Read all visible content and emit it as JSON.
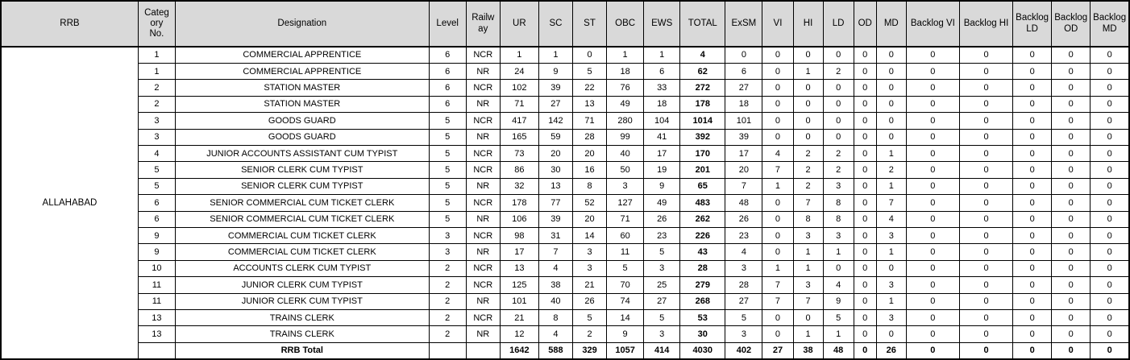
{
  "table": {
    "rrb_label": "ALLAHABAD",
    "columns": [
      "RRB",
      "Categ\nory\nNo.",
      "Designation",
      "Level",
      "Railw\nay",
      "UR",
      "SC",
      "ST",
      "OBC",
      "EWS",
      "TOTAL",
      "ExSM",
      "VI",
      "HI",
      "LD",
      "OD",
      "MD",
      "Backlog VI",
      "Backlog HI",
      "Backlog\nLD",
      "Backlog\nOD",
      "Backlog\nMD"
    ],
    "rows": [
      [
        "1",
        "COMMERCIAL APPRENTICE",
        "6",
        "NCR",
        "1",
        "1",
        "0",
        "1",
        "1",
        "4",
        "0",
        "0",
        "0",
        "0",
        "0",
        "0",
        "0",
        "0",
        "0",
        "0",
        "0"
      ],
      [
        "1",
        "COMMERCIAL APPRENTICE",
        "6",
        "NR",
        "24",
        "9",
        "5",
        "18",
        "6",
        "62",
        "6",
        "0",
        "1",
        "2",
        "0",
        "0",
        "0",
        "0",
        "0",
        "0",
        "0"
      ],
      [
        "2",
        "STATION MASTER",
        "6",
        "NCR",
        "102",
        "39",
        "22",
        "76",
        "33",
        "272",
        "27",
        "0",
        "0",
        "0",
        "0",
        "0",
        "0",
        "0",
        "0",
        "0",
        "0"
      ],
      [
        "2",
        "STATION MASTER",
        "6",
        "NR",
        "71",
        "27",
        "13",
        "49",
        "18",
        "178",
        "18",
        "0",
        "0",
        "0",
        "0",
        "0",
        "0",
        "0",
        "0",
        "0",
        "0"
      ],
      [
        "3",
        "GOODS GUARD",
        "5",
        "NCR",
        "417",
        "142",
        "71",
        "280",
        "104",
        "1014",
        "101",
        "0",
        "0",
        "0",
        "0",
        "0",
        "0",
        "0",
        "0",
        "0",
        "0"
      ],
      [
        "3",
        "GOODS GUARD",
        "5",
        "NR",
        "165",
        "59",
        "28",
        "99",
        "41",
        "392",
        "39",
        "0",
        "0",
        "0",
        "0",
        "0",
        "0",
        "0",
        "0",
        "0",
        "0"
      ],
      [
        "4",
        "JUNIOR ACCOUNTS ASSISTANT CUM TYPIST",
        "5",
        "NCR",
        "73",
        "20",
        "20",
        "40",
        "17",
        "170",
        "17",
        "4",
        "2",
        "2",
        "0",
        "1",
        "0",
        "0",
        "0",
        "0",
        "0"
      ],
      [
        "5",
        "SENIOR CLERK CUM TYPIST",
        "5",
        "NCR",
        "86",
        "30",
        "16",
        "50",
        "19",
        "201",
        "20",
        "7",
        "2",
        "2",
        "0",
        "2",
        "0",
        "0",
        "0",
        "0",
        "0"
      ],
      [
        "5",
        "SENIOR CLERK CUM TYPIST",
        "5",
        "NR",
        "32",
        "13",
        "8",
        "3",
        "9",
        "65",
        "7",
        "1",
        "2",
        "3",
        "0",
        "1",
        "0",
        "0",
        "0",
        "0",
        "0"
      ],
      [
        "6",
        "SENIOR COMMERCIAL CUM TICKET CLERK",
        "5",
        "NCR",
        "178",
        "77",
        "52",
        "127",
        "49",
        "483",
        "48",
        "0",
        "7",
        "8",
        "0",
        "7",
        "0",
        "0",
        "0",
        "0",
        "0"
      ],
      [
        "6",
        "SENIOR COMMERCIAL CUM TICKET CLERK",
        "5",
        "NR",
        "106",
        "39",
        "20",
        "71",
        "26",
        "262",
        "26",
        "0",
        "8",
        "8",
        "0",
        "4",
        "0",
        "0",
        "0",
        "0",
        "0"
      ],
      [
        "9",
        "COMMERCIAL CUM TICKET CLERK",
        "3",
        "NCR",
        "98",
        "31",
        "14",
        "60",
        "23",
        "226",
        "23",
        "0",
        "3",
        "3",
        "0",
        "3",
        "0",
        "0",
        "0",
        "0",
        "0"
      ],
      [
        "9",
        "COMMERCIAL CUM TICKET CLERK",
        "3",
        "NR",
        "17",
        "7",
        "3",
        "11",
        "5",
        "43",
        "4",
        "0",
        "1",
        "1",
        "0",
        "1",
        "0",
        "0",
        "0",
        "0",
        "0"
      ],
      [
        "10",
        "ACCOUNTS CLERK CUM TYPIST",
        "2",
        "NCR",
        "13",
        "4",
        "3",
        "5",
        "3",
        "28",
        "3",
        "1",
        "1",
        "0",
        "0",
        "0",
        "0",
        "0",
        "0",
        "0",
        "0"
      ],
      [
        "11",
        "JUNIOR CLERK CUM TYPIST",
        "2",
        "NCR",
        "125",
        "38",
        "21",
        "70",
        "25",
        "279",
        "28",
        "7",
        "3",
        "4",
        "0",
        "3",
        "0",
        "0",
        "0",
        "0",
        "0"
      ],
      [
        "11",
        "JUNIOR CLERK CUM TYPIST",
        "2",
        "NR",
        "101",
        "40",
        "26",
        "74",
        "27",
        "268",
        "27",
        "7",
        "7",
        "9",
        "0",
        "1",
        "0",
        "0",
        "0",
        "0",
        "0"
      ],
      [
        "13",
        "TRAINS CLERK",
        "2",
        "NCR",
        "21",
        "8",
        "5",
        "14",
        "5",
        "53",
        "5",
        "0",
        "0",
        "5",
        "0",
        "3",
        "0",
        "0",
        "0",
        "0",
        "0"
      ],
      [
        "13",
        "TRAINS CLERK",
        "2",
        "NR",
        "12",
        "4",
        "2",
        "9",
        "3",
        "30",
        "3",
        "0",
        "1",
        "1",
        "0",
        "0",
        "0",
        "0",
        "0",
        "0",
        "0"
      ]
    ],
    "total_row": [
      "",
      "RRB Total",
      "",
      "",
      "1642",
      "588",
      "329",
      "1057",
      "414",
      "4030",
      "402",
      "27",
      "38",
      "48",
      "0",
      "26",
      "0",
      "0",
      "0",
      "0",
      "0"
    ],
    "colors": {
      "header_bg": "#D9D9D9",
      "border": "#000000",
      "text": "#000000"
    }
  }
}
